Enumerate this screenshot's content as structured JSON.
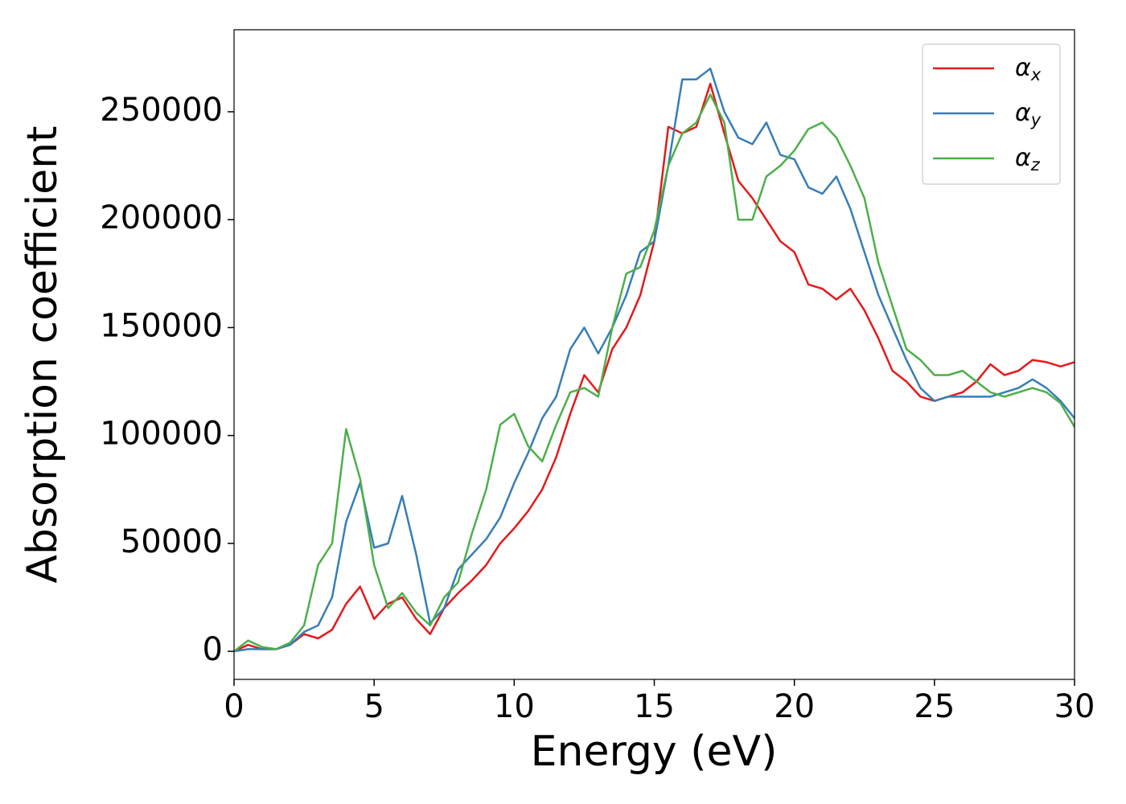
{
  "chart_data": {
    "type": "line",
    "xlabel": "Energy (eV)",
    "ylabel": "Absorption coefficient",
    "x": [
      0,
      0.5,
      1,
      1.5,
      2,
      2.5,
      3,
      3.5,
      4,
      4.5,
      5,
      5.5,
      6,
      6.5,
      7,
      7.5,
      8,
      8.5,
      9,
      9.5,
      10,
      10.5,
      11,
      11.5,
      12,
      12.5,
      13,
      13.5,
      14,
      14.5,
      15,
      15.5,
      16,
      16.5,
      17,
      17.5,
      18,
      18.5,
      19,
      19.5,
      20,
      20.5,
      21,
      21.5,
      22,
      22.5,
      23,
      23.5,
      24,
      24.5,
      25,
      25.5,
      26,
      26.5,
      27,
      27.5,
      28,
      28.5,
      29,
      29.5,
      30
    ],
    "series": [
      {
        "name": "αx",
        "color": "#e41a1c",
        "values": [
          0,
          3000,
          1000,
          1000,
          3000,
          8000,
          6000,
          10000,
          22000,
          30000,
          15000,
          22000,
          25000,
          15000,
          8000,
          20000,
          27000,
          33000,
          40000,
          50000,
          57000,
          65000,
          75000,
          90000,
          110000,
          128000,
          120000,
          140000,
          150000,
          165000,
          190000,
          243000,
          240000,
          243000,
          263000,
          240000,
          218000,
          210000,
          200000,
          190000,
          185000,
          170000,
          168000,
          163000,
          168000,
          158000,
          145000,
          130000,
          125000,
          118000,
          116000,
          118000,
          120000,
          125000,
          133000,
          128000,
          130000,
          135000,
          134000,
          132000,
          134000
        ]
      },
      {
        "name": "αy",
        "color": "#377eb8",
        "values": [
          0,
          1000,
          1000,
          1000,
          3000,
          9000,
          12000,
          25000,
          60000,
          78000,
          48000,
          50000,
          72000,
          45000,
          13000,
          20000,
          38000,
          45000,
          52000,
          62000,
          78000,
          92000,
          108000,
          118000,
          140000,
          150000,
          138000,
          150000,
          165000,
          185000,
          190000,
          225000,
          265000,
          265000,
          270000,
          250000,
          238000,
          235000,
          245000,
          230000,
          228000,
          215000,
          212000,
          220000,
          205000,
          185000,
          165000,
          150000,
          135000,
          122000,
          116000,
          118000,
          118000,
          118000,
          118000,
          120000,
          122000,
          126000,
          122000,
          116000,
          108000
        ]
      },
      {
        "name": "αz",
        "color": "#4daf4a",
        "values": [
          0,
          5000,
          2000,
          1000,
          4000,
          12000,
          40000,
          50000,
          103000,
          80000,
          40000,
          20000,
          27000,
          18000,
          12000,
          25000,
          32000,
          55000,
          75000,
          105000,
          110000,
          95000,
          88000,
          105000,
          120000,
          122000,
          118000,
          150000,
          175000,
          178000,
          195000,
          225000,
          240000,
          245000,
          258000,
          245000,
          200000,
          200000,
          220000,
          225000,
          232000,
          242000,
          245000,
          238000,
          225000,
          210000,
          180000,
          160000,
          140000,
          135000,
          128000,
          128000,
          130000,
          125000,
          120000,
          118000,
          120000,
          122000,
          120000,
          115000,
          104000
        ]
      }
    ],
    "xlim": [
      0,
      30
    ],
    "xticks": [
      0,
      5,
      10,
      15,
      20,
      25,
      30
    ],
    "ylim": [
      -13000,
      288000
    ],
    "yticks": [
      0,
      50000,
      100000,
      150000,
      200000,
      250000
    ],
    "legend": "upper right"
  }
}
